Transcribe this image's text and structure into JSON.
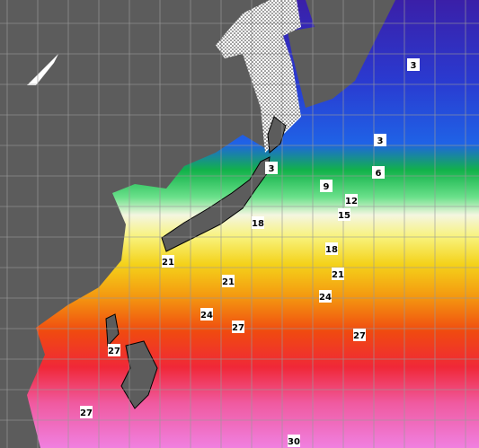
{
  "map": {
    "contour_labels": [
      3,
      3,
      3,
      6,
      9,
      12,
      15,
      18,
      18,
      21,
      21,
      21,
      24,
      24,
      27,
      27,
      27,
      27,
      30
    ]
  }
}
